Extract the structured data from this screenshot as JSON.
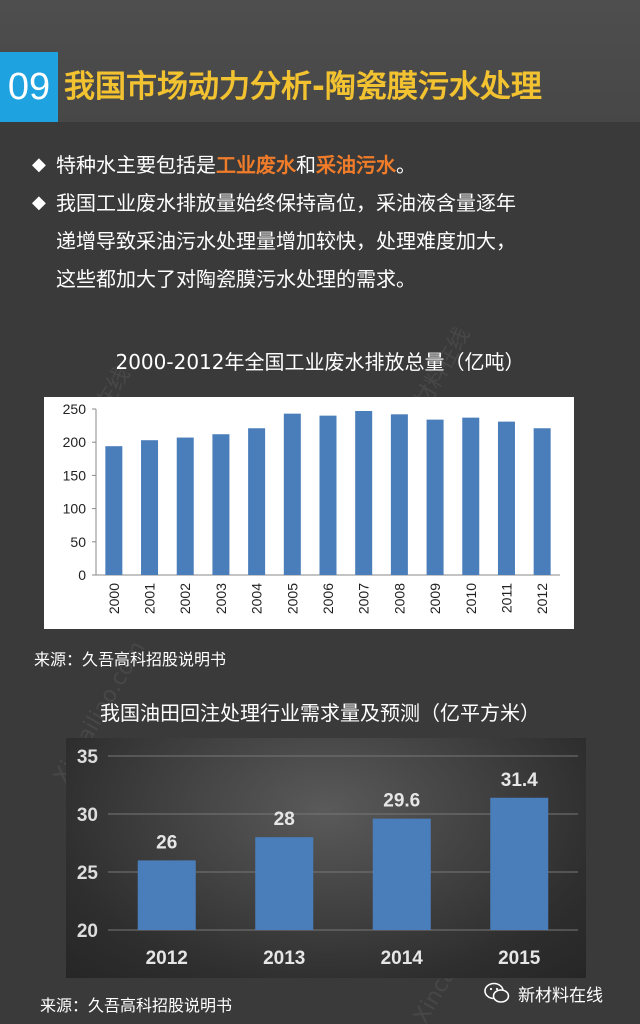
{
  "header": {
    "number": "09",
    "title": "我国市场动力分析-陶瓷膜污水处理"
  },
  "bullets": [
    {
      "marker": "◆",
      "prefix": "特种水主要包括是",
      "highlight1": "工业废水",
      "middle": "和",
      "highlight2": "采油污水",
      "suffix": "。"
    },
    {
      "marker": "◆",
      "line1": "我国工业废水排放量始终保持高位，采油液含量逐年",
      "line2": "递增导致采油污水处理量增加较快，处理难度加大，",
      "line3": "这些都加大了对陶瓷膜污水处理的需求。"
    }
  ],
  "colors": {
    "accent_blue": "#1fa3e0",
    "title_yellow": "#f2c230",
    "highlight_orange": "#f07c2a",
    "bar_blue": "#4a7ebb"
  },
  "watermark": {
    "cn": "新材料在线",
    "en": "Xincailiao.com"
  },
  "source1": "来源：久吾高科招股说明书",
  "source2": "来源：久吾高科招股说明书",
  "brand": {
    "icon": "wechat-icon",
    "name": "新材料在线"
  },
  "chart_data": [
    {
      "type": "bar",
      "title": "2000-2012年全国工业废水排放总量（亿吨）",
      "categories": [
        "2000",
        "2001",
        "2002",
        "2003",
        "2004",
        "2005",
        "2006",
        "2007",
        "2008",
        "2009",
        "2010",
        "2011",
        "2012"
      ],
      "values": [
        194,
        203,
        207,
        212,
        221,
        243,
        240,
        247,
        242,
        234,
        237,
        231,
        221
      ],
      "ylim": [
        0,
        250
      ],
      "yticks": [
        0,
        50,
        100,
        150,
        200,
        250
      ],
      "grid": false
    },
    {
      "type": "bar",
      "title": "我国油田回注处理行业需求量及预测（亿平方米）",
      "categories": [
        "2012",
        "2013",
        "2014",
        "2015"
      ],
      "values": [
        26,
        28,
        29.6,
        31.4
      ],
      "data_labels": [
        "26",
        "28",
        "29.6",
        "31.4"
      ],
      "ylim": [
        20,
        35
      ],
      "yticks": [
        20,
        25,
        30,
        35
      ],
      "grid": true
    }
  ]
}
